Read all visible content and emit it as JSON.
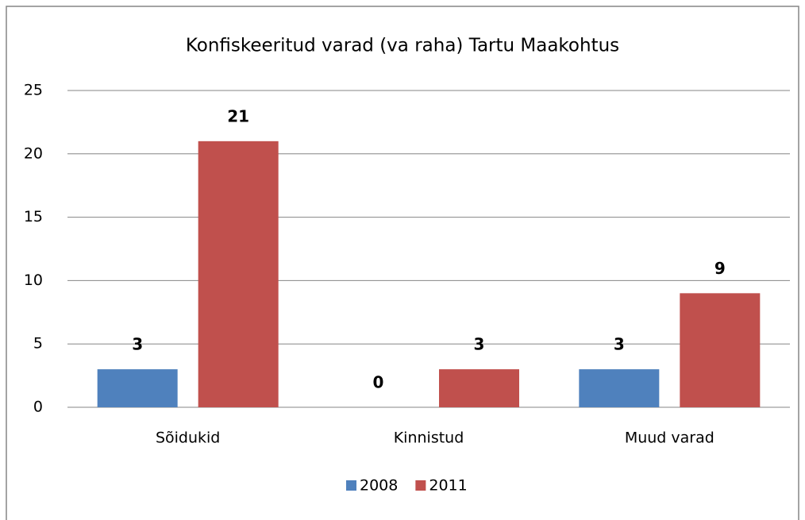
{
  "chart_data": {
    "type": "bar",
    "title": "Konfiskeeritud varad (va raha) Tartu Maakohtus",
    "categories": [
      "Sõidukid",
      "Kinnistud",
      "Muud varad"
    ],
    "series": [
      {
        "name": "2008",
        "color": "#4f81bd",
        "values": [
          3,
          0,
          3
        ]
      },
      {
        "name": "2011",
        "color": "#c0504d",
        "values": [
          21,
          3,
          9
        ]
      }
    ],
    "ylim": [
      0,
      25
    ],
    "yticks": [
      0,
      5,
      10,
      15,
      20,
      25
    ],
    "grid": true,
    "legend": "bottom"
  }
}
